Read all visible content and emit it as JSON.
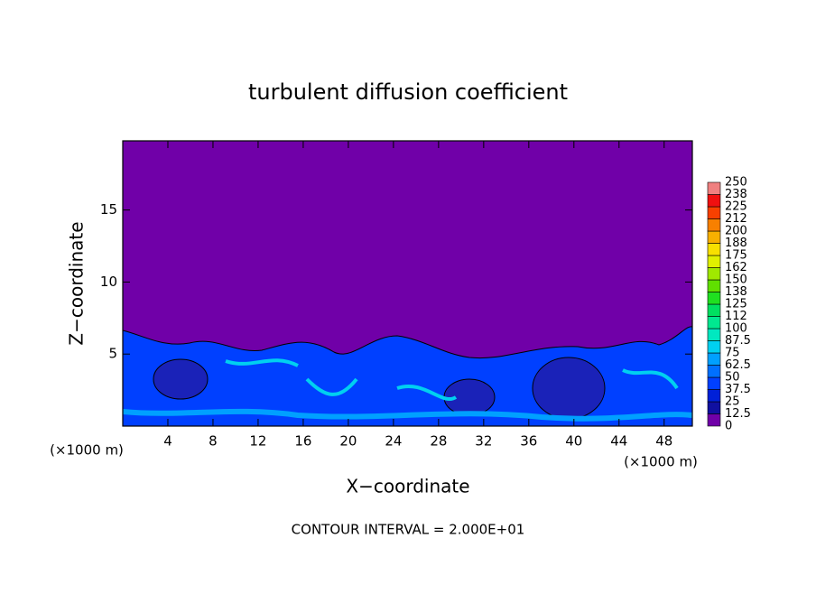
{
  "chart_data": {
    "type": "contour",
    "title": "turbulent diffusion coefficient",
    "x_label": "X−coordinate",
    "y_label": "Z−coordinate",
    "x_unit_label": "(×1000 m)",
    "y_unit_label": "(×1000 m)",
    "annotation": "CONTOUR INTERVAL = 2.000E+01",
    "xlim": [
      0,
      50.5
    ],
    "ylim": [
      0,
      19.8
    ],
    "xticks": [
      4,
      8,
      12,
      16,
      20,
      24,
      28,
      32,
      36,
      40,
      44,
      48
    ],
    "yticks": [
      5,
      10,
      15
    ],
    "colorbar": {
      "levels": [
        0,
        12.5,
        25,
        37.5,
        50,
        62.5,
        75,
        87.5,
        100,
        112,
        125,
        138,
        150,
        162,
        175,
        188,
        200,
        212,
        225,
        238,
        250
      ],
      "colors": [
        "#7000a8",
        "#1010a0",
        "#0020d8",
        "#0040ff",
        "#0070ff",
        "#00a0ff",
        "#00d0f0",
        "#00e8c0",
        "#00e890",
        "#00e060",
        "#20e020",
        "#60e000",
        "#a0e800",
        "#e0f000",
        "#f8e000",
        "#f8b000",
        "#f88000",
        "#f84000",
        "#f01010",
        "#f08080"
      ]
    }
  }
}
